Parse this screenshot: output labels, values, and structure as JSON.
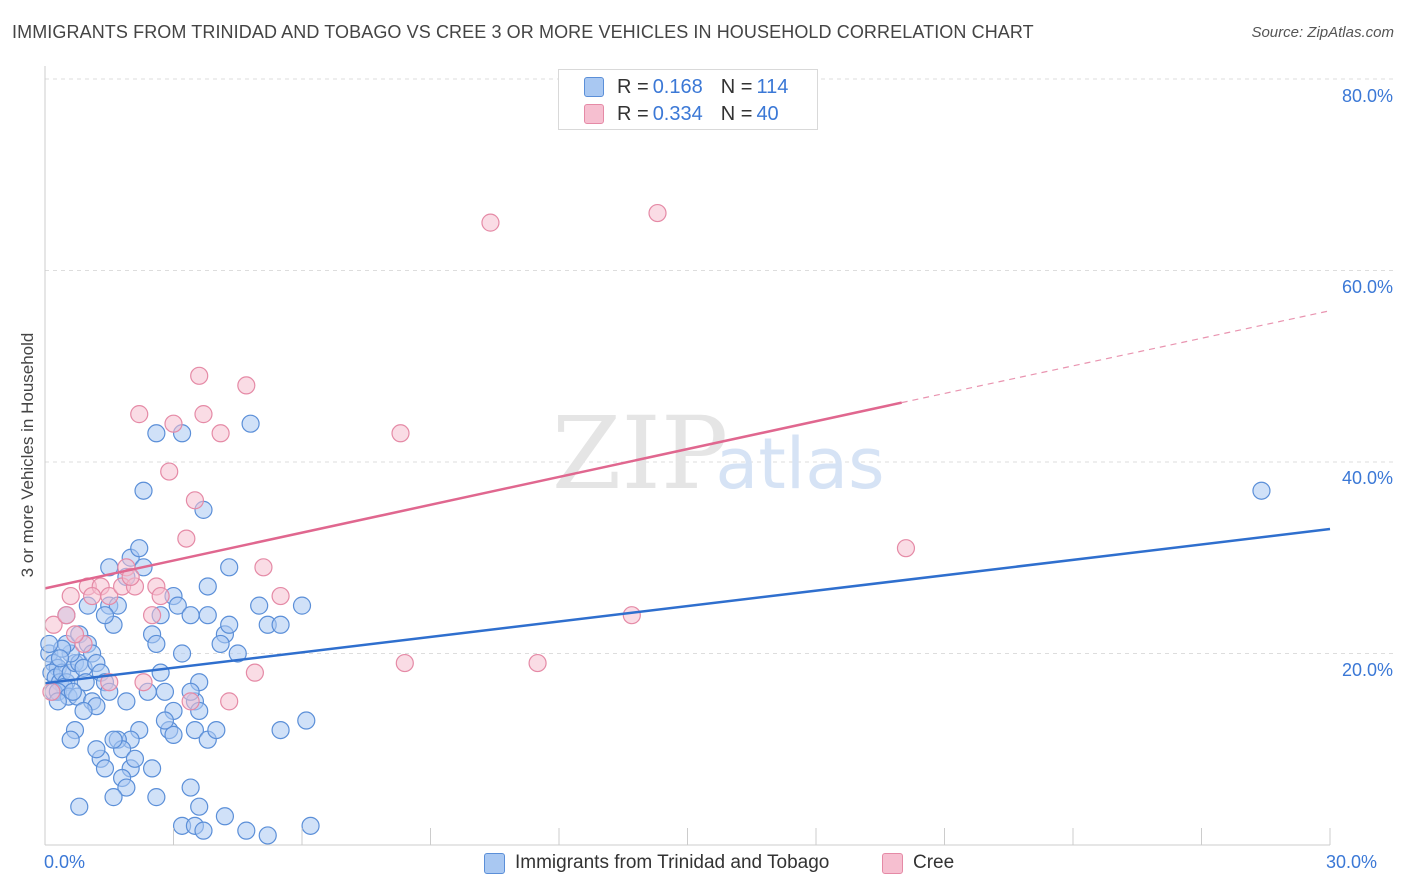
{
  "header": {
    "title": "IMMIGRANTS FROM TRINIDAD AND TOBAGO VS CREE 3 OR MORE VEHICLES IN HOUSEHOLD CORRELATION CHART",
    "source": "Source: ZipAtlas.com"
  },
  "watermark": {
    "zip": "ZIP",
    "atlas": "atlas"
  },
  "legend_top": {
    "rows": [
      {
        "r_label": "R = ",
        "r_value": "0.168",
        "n_label": "N = ",
        "n_value": "114"
      },
      {
        "r_label": "R = ",
        "r_value": "0.334",
        "n_label": "N = ",
        "n_value": "40"
      }
    ]
  },
  "legend_bottom": {
    "items": [
      {
        "label": "Immigrants from Trinidad and Tobago"
      },
      {
        "label": "Cree"
      }
    ]
  },
  "colors": {
    "series1_fill": "#a9c8f2",
    "series1_stroke": "#5b8fd8",
    "series1_line": "#2f6fce",
    "series2_fill": "#f6bfd0",
    "series2_stroke": "#e58aa6",
    "series2_line": "#e0678f",
    "grid": "#dddddd",
    "axis_label": "#3b78d6"
  },
  "chart_data": {
    "type": "scatter",
    "title": "IMMIGRANTS FROM TRINIDAD AND TOBAGO VS CREE 3 OR MORE VEHICLES IN HOUSEHOLD CORRELATION CHART",
    "ylabel": "3 or more Vehicles in Household",
    "xlabel": "",
    "xlim": [
      0,
      30
    ],
    "ylim": [
      0,
      80
    ],
    "x_tick_labels": [
      "0.0%",
      "30.0%"
    ],
    "y_tick_labels": [
      "20.0%",
      "40.0%",
      "60.0%",
      "80.0%"
    ],
    "y_tick_values": [
      20,
      40,
      60,
      80
    ],
    "grid": true,
    "legend_placement": "top-center",
    "series": [
      {
        "name": "Immigrants from Trinidad and Tobago",
        "R": 0.168,
        "N": 114,
        "trend": {
          "x": [
            0,
            30
          ],
          "y": [
            16.9,
            33.0
          ]
        },
        "points": [
          [
            0.1,
            20
          ],
          [
            0.2,
            19
          ],
          [
            0.3,
            18.5
          ],
          [
            0.15,
            18
          ],
          [
            0.25,
            17.5
          ],
          [
            0.35,
            17
          ],
          [
            0.4,
            18
          ],
          [
            0.5,
            17
          ],
          [
            0.45,
            16.5
          ],
          [
            0.6,
            18
          ],
          [
            0.2,
            16
          ],
          [
            0.3,
            16
          ],
          [
            0.55,
            15.5
          ],
          [
            0.7,
            19
          ],
          [
            0.8,
            19
          ],
          [
            0.9,
            18.5
          ],
          [
            0.75,
            15.5
          ],
          [
            0.95,
            17
          ],
          [
            0.6,
            20
          ],
          [
            0.5,
            21
          ],
          [
            0.8,
            22
          ],
          [
            1.0,
            21
          ],
          [
            1.1,
            20
          ],
          [
            1.2,
            19
          ],
          [
            1.3,
            18
          ],
          [
            1.4,
            17
          ],
          [
            1.5,
            16
          ],
          [
            1.1,
            15
          ],
          [
            1.2,
            14.5
          ],
          [
            0.9,
            14
          ],
          [
            1.0,
            25
          ],
          [
            1.5,
            25
          ],
          [
            1.7,
            25
          ],
          [
            1.9,
            28
          ],
          [
            2.0,
            30
          ],
          [
            2.2,
            31
          ],
          [
            2.3,
            29
          ],
          [
            1.6,
            23
          ],
          [
            1.4,
            24
          ],
          [
            2.5,
            22
          ],
          [
            2.6,
            21
          ],
          [
            2.7,
            24
          ],
          [
            3.0,
            26
          ],
          [
            3.1,
            25
          ],
          [
            3.4,
            24
          ],
          [
            3.2,
            20
          ],
          [
            2.8,
            16
          ],
          [
            3.5,
            15
          ],
          [
            3.6,
            14
          ],
          [
            2.4,
            16
          ],
          [
            2.2,
            12
          ],
          [
            2.0,
            11
          ],
          [
            2.9,
            12
          ],
          [
            3.0,
            11.5
          ],
          [
            3.5,
            12
          ],
          [
            3.8,
            11
          ],
          [
            4.0,
            12
          ],
          [
            3.6,
            17
          ],
          [
            4.2,
            22
          ],
          [
            4.1,
            21
          ],
          [
            4.3,
            23
          ],
          [
            3.8,
            27
          ],
          [
            4.3,
            29
          ],
          [
            5.0,
            25
          ],
          [
            5.2,
            23
          ],
          [
            5.5,
            23
          ],
          [
            6.0,
            25
          ],
          [
            6.1,
            13
          ],
          [
            1.7,
            11
          ],
          [
            1.8,
            10
          ],
          [
            1.3,
            9
          ],
          [
            1.4,
            8
          ],
          [
            2.0,
            8
          ],
          [
            2.1,
            9
          ],
          [
            1.8,
            7
          ],
          [
            1.9,
            6
          ],
          [
            1.6,
            5
          ],
          [
            2.6,
            5
          ],
          [
            3.4,
            6
          ],
          [
            3.6,
            4
          ],
          [
            4.2,
            3
          ],
          [
            3.2,
            2
          ],
          [
            3.5,
            2
          ],
          [
            3.7,
            1.5
          ],
          [
            4.7,
            1.5
          ],
          [
            5.2,
            1
          ],
          [
            6.2,
            2
          ],
          [
            0.8,
            4
          ],
          [
            0.5,
            24
          ],
          [
            1.5,
            29
          ],
          [
            2.6,
            43
          ],
          [
            3.2,
            43
          ],
          [
            3.7,
            35
          ],
          [
            4.8,
            44
          ],
          [
            2.3,
            37
          ],
          [
            1.6,
            11
          ],
          [
            0.7,
            12
          ],
          [
            0.6,
            11
          ],
          [
            0.3,
            15
          ],
          [
            1.9,
            15
          ],
          [
            2.7,
            18
          ],
          [
            0.4,
            20.5
          ],
          [
            0.1,
            21
          ],
          [
            0.35,
            19.5
          ],
          [
            0.65,
            16
          ],
          [
            1.2,
            10
          ],
          [
            2.5,
            8
          ],
          [
            3.0,
            14
          ],
          [
            3.4,
            16
          ],
          [
            2.8,
            13
          ],
          [
            3.8,
            24
          ],
          [
            4.5,
            20
          ],
          [
            5.5,
            12
          ],
          [
            28.4,
            37
          ]
        ]
      },
      {
        "name": "Cree",
        "R": 0.334,
        "N": 40,
        "trend": {
          "x": [
            0,
            20
          ],
          "y": [
            26.8,
            46.2
          ]
        },
        "trend_dashed": {
          "x": [
            20,
            30
          ],
          "y": [
            46.2,
            55.8
          ]
        },
        "points": [
          [
            0.2,
            23
          ],
          [
            0.5,
            24
          ],
          [
            0.6,
            26
          ],
          [
            1.0,
            27
          ],
          [
            1.3,
            27
          ],
          [
            1.5,
            26
          ],
          [
            1.8,
            27
          ],
          [
            1.9,
            29
          ],
          [
            2.1,
            27
          ],
          [
            2.5,
            24
          ],
          [
            2.6,
            27
          ],
          [
            2.7,
            26
          ],
          [
            3.0,
            44
          ],
          [
            2.2,
            45
          ],
          [
            2.9,
            39
          ],
          [
            3.6,
            49
          ],
          [
            3.7,
            45
          ],
          [
            4.1,
            43
          ],
          [
            4.7,
            48
          ],
          [
            3.5,
            36
          ],
          [
            3.3,
            32
          ],
          [
            5.1,
            29
          ],
          [
            5.5,
            26
          ],
          [
            0.9,
            21
          ],
          [
            0.7,
            22
          ],
          [
            1.5,
            17
          ],
          [
            2.3,
            17
          ],
          [
            3.4,
            15
          ],
          [
            4.3,
            15
          ],
          [
            4.9,
            18
          ],
          [
            8.3,
            43
          ],
          [
            10.4,
            65
          ],
          [
            14.3,
            66
          ],
          [
            8.4,
            19
          ],
          [
            11.5,
            19
          ],
          [
            13.7,
            24
          ],
          [
            20.1,
            31
          ],
          [
            0.15,
            16
          ],
          [
            1.1,
            26
          ],
          [
            2.0,
            28
          ]
        ]
      }
    ]
  }
}
